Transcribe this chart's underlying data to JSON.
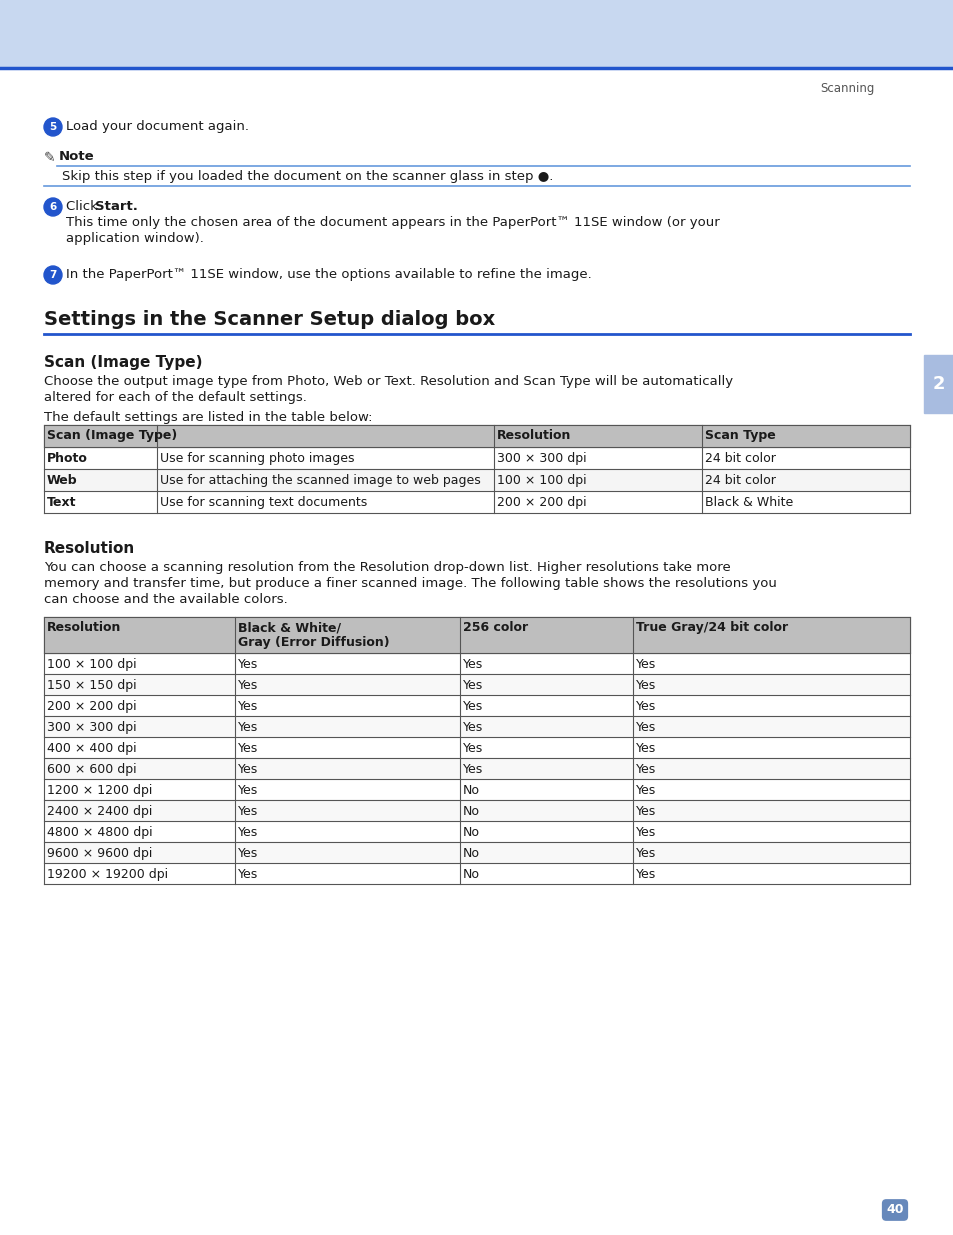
{
  "page_bg": "#ffffff",
  "header_bg": "#c8d8f0",
  "header_line_color": "#2255cc",
  "sidebar_color": "#a8bce0",
  "page_number": "40",
  "chapter_number": "2",
  "section_title": "Settings in the Scanner Setup dialog box",
  "subsection1_title": "Scan (Image Type)",
  "subsection1_body1_parts": [
    [
      "normal",
      "Choose the output image type from "
    ],
    [
      "bold",
      "Photo"
    ],
    [
      "normal",
      ", "
    ],
    [
      "bold",
      "Web"
    ],
    [
      "normal",
      " or "
    ],
    [
      "bold",
      "Text"
    ],
    [
      "normal",
      ". "
    ],
    [
      "bold",
      "Resolution"
    ],
    [
      "normal",
      " and "
    ],
    [
      "bold",
      "Scan Type"
    ],
    [
      "normal",
      " will be automatically"
    ]
  ],
  "subsection1_body1_line2": "altered for each of the default settings.",
  "subsection1_body2": "The default settings are listed in the table below:",
  "subsection2_title": "Resolution",
  "subsection2_body_parts": [
    [
      "normal",
      "You can choose a scanning resolution from the "
    ],
    [
      "bold",
      "Resolution"
    ],
    [
      "normal",
      " drop-down list. Higher resolutions take more"
    ]
  ],
  "subsection2_body_line2": "memory and transfer time, but produce a finer scanned image. The following table shows the resolutions you",
  "subsection2_body_line3": "can choose and the available colors.",
  "step5_text": "Load your document again.",
  "note_body": "Skip this step if you loaded the document on the scanner glass in step ●.",
  "step6_text_parts": [
    [
      "normal",
      "Click "
    ],
    [
      "bold",
      "Start."
    ]
  ],
  "step6_sub": "This time only the chosen area of the document appears in the PaperPort™ 11SE window (or your",
  "step6_sub2": "application window).",
  "step7_text": "In the PaperPort™ 11SE window, use the options available to refine the image.",
  "table1_headers": [
    "Scan (Image Type)",
    "Resolution",
    "Scan Type"
  ],
  "table1_rows": [
    [
      "Photo",
      "Use for scanning photo images",
      "300 × 300 dpi",
      "24 bit color"
    ],
    [
      "Web",
      "Use for attaching the scanned image to web pages",
      "100 × 100 dpi",
      "24 bit color"
    ],
    [
      "Text",
      "Use for scanning text documents",
      "200 × 200 dpi",
      "Black & White"
    ]
  ],
  "table2_headers": [
    "Resolution",
    "Black & White/\nGray (Error Diffusion)",
    "256 color",
    "True Gray/24 bit color"
  ],
  "table2_rows": [
    [
      "100 × 100 dpi",
      "Yes",
      "Yes",
      "Yes"
    ],
    [
      "150 × 150 dpi",
      "Yes",
      "Yes",
      "Yes"
    ],
    [
      "200 × 200 dpi",
      "Yes",
      "Yes",
      "Yes"
    ],
    [
      "300 × 300 dpi",
      "Yes",
      "Yes",
      "Yes"
    ],
    [
      "400 × 400 dpi",
      "Yes",
      "Yes",
      "Yes"
    ],
    [
      "600 × 600 dpi",
      "Yes",
      "Yes",
      "Yes"
    ],
    [
      "1200 × 1200 dpi",
      "Yes",
      "No",
      "Yes"
    ],
    [
      "2400 × 2400 dpi",
      "Yes",
      "No",
      "Yes"
    ],
    [
      "4800 × 4800 dpi",
      "Yes",
      "No",
      "Yes"
    ],
    [
      "9600 × 9600 dpi",
      "Yes",
      "No",
      "Yes"
    ],
    [
      "19200 × 19200 dpi",
      "Yes",
      "No",
      "Yes"
    ]
  ],
  "table_header_bg": "#bebebe",
  "table_border_color": "#555555",
  "text_color": "#1a1a1a",
  "blue_bullet_color": "#2255cc",
  "section_line_color": "#2255cc",
  "note_line_color": "#6699dd"
}
